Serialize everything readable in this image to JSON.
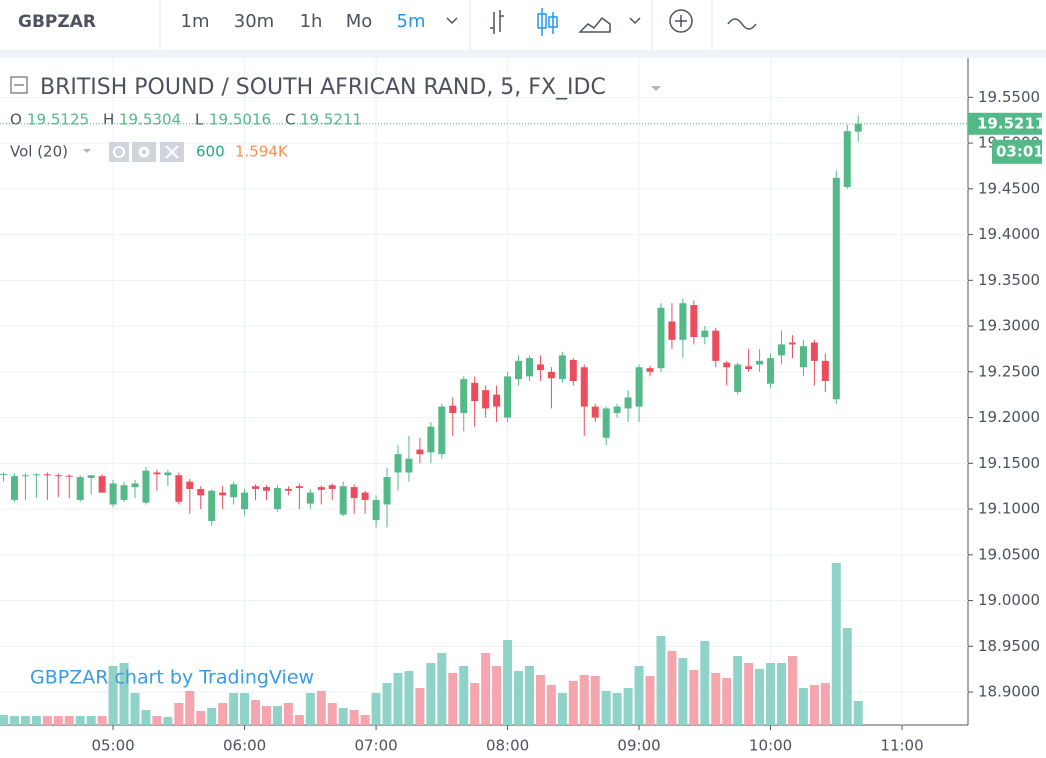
{
  "toolbar": {
    "symbol": "GBPZAR",
    "intervals": [
      "1m",
      "30m",
      "1h",
      "Mo",
      "5m"
    ],
    "active_interval": 4
  },
  "chart_data": {
    "type": "candlestick",
    "title": "BRITISH POUND / SOUTH AFRICAN RAND, 5, FX_IDC",
    "legend": {
      "o_label": "O",
      "h_label": "H",
      "l_label": "L",
      "c_label": "C",
      "volume_title": "Vol (20)",
      "volume_ma": "1.594K"
    },
    "watermark": "GBPZAR chart by TradingView",
    "countdown": "03:01",
    "x": [
      250,
      255,
      260,
      265,
      270,
      275,
      280,
      285,
      290,
      295,
      300,
      305,
      310,
      315,
      320,
      325,
      330,
      335,
      340,
      345,
      350,
      355,
      360,
      365,
      370,
      375,
      380,
      385,
      390,
      395,
      400,
      405,
      410,
      415,
      420,
      425,
      430,
      435,
      440,
      445,
      450,
      455,
      460,
      465,
      470,
      475,
      480,
      485,
      490,
      495,
      500,
      505,
      510,
      515,
      520,
      525,
      530,
      535,
      540,
      545,
      550,
      555,
      560,
      565,
      570,
      575,
      580,
      585,
      590,
      595,
      600,
      605,
      610,
      615,
      620,
      625,
      630,
      635,
      640
    ],
    "open": [
      19.138,
      19.11,
      19.136,
      19.137,
      19.138,
      19.137,
      19.1365,
      19.11,
      19.134,
      19.136,
      19.105,
      19.11,
      19.124,
      19.107,
      19.14,
      19.137,
      19.137,
      19.13,
      19.122,
      19.087,
      19.118,
      19.113,
      19.1,
      19.125,
      19.124,
      19.1,
      19.122,
      19.125,
      19.106,
      19.124,
      19.126,
      19.094,
      19.124,
      19.118,
      19.088,
      19.105,
      19.14,
      19.14,
      19.165,
      19.162,
      19.16,
      19.213,
      19.205,
      19.238,
      19.23,
      19.225,
      19.2,
      19.242,
      19.245,
      19.258,
      19.25,
      19.242,
      19.263,
      19.255,
      19.212,
      19.178,
      19.205,
      19.21,
      19.212,
      19.254,
      19.254,
      19.305,
      19.285,
      19.323,
      19.288,
      19.295,
      19.26,
      19.228,
      19.256,
      19.258,
      19.237,
      19.268,
      19.282,
      19.255,
      19.282,
      19.262,
      19.22,
      19.452,
      19.5125
    ],
    "high": [
      19.14,
      19.139,
      19.139,
      19.139,
      19.14,
      19.139,
      19.138,
      19.137,
      19.137,
      19.138,
      19.132,
      19.13,
      19.132,
      19.146,
      19.143,
      19.143,
      19.14,
      19.133,
      19.125,
      19.122,
      19.125,
      19.13,
      19.122,
      19.127,
      19.126,
      19.126,
      19.125,
      19.128,
      19.122,
      19.126,
      19.128,
      19.13,
      19.127,
      19.12,
      19.115,
      19.145,
      19.17,
      19.18,
      19.178,
      19.195,
      19.215,
      19.222,
      19.245,
      19.245,
      19.235,
      19.235,
      19.25,
      19.268,
      19.268,
      19.268,
      19.255,
      19.272,
      19.265,
      19.258,
      19.215,
      19.212,
      19.215,
      19.23,
      19.258,
      19.257,
      19.325,
      19.325,
      19.33,
      19.328,
      19.3,
      19.298,
      19.262,
      19.26,
      19.275,
      19.275,
      19.27,
      19.295,
      19.29,
      19.285,
      19.285,
      19.27,
      19.47,
      19.52,
      19.5304
    ],
    "low": [
      19.13,
      19.108,
      19.11,
      19.112,
      19.11,
      19.113,
      19.112,
      19.108,
      19.116,
      19.118,
      19.102,
      19.108,
      19.112,
      19.105,
      19.12,
      19.125,
      19.105,
      19.095,
      19.1,
      19.082,
      19.1,
      19.105,
      19.093,
      19.11,
      19.11,
      19.097,
      19.115,
      19.1,
      19.1,
      19.105,
      19.11,
      19.092,
      19.095,
      19.095,
      19.08,
      19.08,
      19.12,
      19.13,
      19.15,
      19.15,
      19.155,
      19.18,
      19.185,
      19.19,
      19.2,
      19.195,
      19.195,
      19.235,
      19.24,
      19.24,
      19.21,
      19.238,
      19.235,
      19.18,
      19.195,
      19.17,
      19.2,
      19.195,
      19.195,
      19.245,
      19.25,
      19.275,
      19.265,
      19.28,
      19.28,
      19.255,
      19.235,
      19.225,
      19.25,
      19.25,
      19.232,
      19.258,
      19.265,
      19.245,
      19.235,
      19.228,
      19.215,
      19.45,
      19.5016
    ],
    "close": [
      19.1385,
      19.136,
      19.137,
      19.138,
      19.137,
      19.1365,
      19.136,
      19.135,
      19.137,
      19.118,
      19.128,
      19.126,
      19.128,
      19.142,
      19.138,
      19.14,
      19.108,
      19.122,
      19.115,
      19.12,
      19.115,
      19.127,
      19.118,
      19.122,
      19.12,
      19.123,
      19.12,
      19.123,
      19.118,
      19.121,
      19.122,
      19.125,
      19.112,
      19.11,
      19.11,
      19.135,
      19.16,
      19.155,
      19.16,
      19.19,
      19.212,
      19.205,
      19.242,
      19.218,
      19.21,
      19.212,
      19.245,
      19.262,
      19.265,
      19.252,
      19.243,
      19.268,
      19.24,
      19.212,
      19.2,
      19.21,
      19.212,
      19.222,
      19.255,
      19.25,
      19.32,
      19.285,
      19.325,
      19.288,
      19.295,
      19.262,
      19.255,
      19.258,
      19.253,
      19.262,
      19.265,
      19.28,
      19.28,
      19.278,
      19.262,
      19.24,
      19.462,
      19.513,
      19.5211
    ],
    "volume": [
      250,
      225,
      225,
      225,
      225,
      225,
      225,
      225,
      225,
      225,
      1475,
      1550,
      800,
      375,
      225,
      200,
      550,
      850,
      350,
      425,
      550,
      800,
      800,
      625,
      475,
      475,
      550,
      250,
      800,
      850,
      550,
      425,
      375,
      250,
      800,
      1050,
      1300,
      1350,
      925,
      1550,
      1800,
      1300,
      1475,
      1050,
      1800,
      1475,
      2125,
      1350,
      1475,
      1250,
      1000,
      800,
      1100,
      1250,
      1225,
      850,
      800,
      925,
      1475,
      1225,
      2225,
      1850,
      1675,
      1375,
      2100,
      1300,
      1175,
      1725,
      1550,
      1400,
      1550,
      1550,
      1725,
      925,
      1000,
      1050,
      4050,
      2425,
      600
    ],
    "up_color": "#53b987",
    "down_color": "#eb4d5c",
    "volume_up_color": "#8fd2c8",
    "volume_down_color": "#f5a5ad",
    "xlim": [
      248.4,
      690.1
    ],
    "xticks": [
      {
        "value": 300,
        "label": "05:00"
      },
      {
        "value": 360,
        "label": "06:00"
      },
      {
        "value": 420,
        "label": "07:00"
      },
      {
        "value": 480,
        "label": "08:00"
      },
      {
        "value": 540,
        "label": "09:00"
      },
      {
        "value": 600,
        "label": "10:00"
      },
      {
        "value": 660,
        "label": "11:00"
      }
    ],
    "ylim": [
      18.864,
      19.593
    ],
    "yticks": [
      {
        "value": 18.9,
        "label": "18.9000"
      },
      {
        "value": 18.95,
        "label": "18.9500"
      },
      {
        "value": 19,
        "label": "19.0000"
      },
      {
        "value": 19.05,
        "label": "19.0500"
      },
      {
        "value": 19.1,
        "label": "19.1000"
      },
      {
        "value": 19.15,
        "label": "19.1500"
      },
      {
        "value": 19.2,
        "label": "19.2000"
      },
      {
        "value": 19.25,
        "label": "19.2500"
      },
      {
        "value": 19.3,
        "label": "19.3000"
      },
      {
        "value": 19.35,
        "label": "19.3500"
      },
      {
        "value": 19.4,
        "label": "19.4000"
      },
      {
        "value": 19.45,
        "label": "19.4500"
      },
      {
        "value": 19.5,
        "label": "19.5000"
      },
      {
        "value": 19.55,
        "label": "19.5500"
      }
    ],
    "volume_lim": [
      0,
      16675
    ],
    "grid": true
  }
}
